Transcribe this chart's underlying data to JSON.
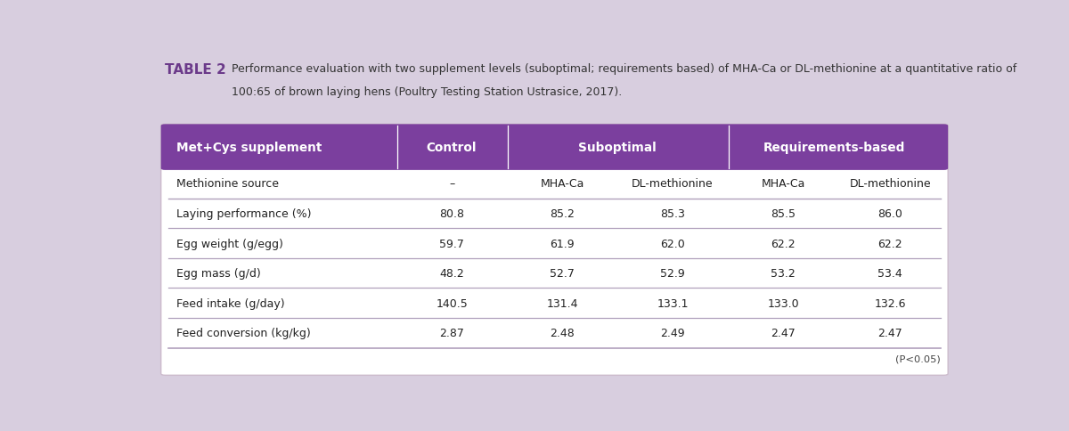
{
  "title_label": "TABLE 2",
  "title_text1": "Performance evaluation with two supplement levels (suboptimal; requirements based) of MHA-Ca or DL-methionine at a quantitative ratio of",
  "title_text2": "100:65 of brown laying hens (Poultry Testing Station Ustrasice, 2017).",
  "header_bg_color": "#7B3F9E",
  "outer_bg_color": "#D8CEDF",
  "row_line_color": "#B0A0BC",
  "header_row_col0": "Met+Cys supplement",
  "header_row_col1": "Control",
  "header_row_col23": "Suboptimal",
  "header_row_col45": "Requirements-based",
  "subheader_row": [
    "Methionine source",
    "–",
    "MHA-Ca",
    "DL-methionine",
    "MHA-Ca",
    "DL-methionine"
  ],
  "data_rows": [
    [
      "Laying performance (%)",
      "80.8",
      "85.2",
      "85.3",
      "85.5",
      "86.0"
    ],
    [
      "Egg weight (g/egg)",
      "59.7",
      "61.9",
      "62.0",
      "62.2",
      "62.2"
    ],
    [
      "Egg mass (g/d)",
      "48.2",
      "52.7",
      "52.9",
      "53.2",
      "53.4"
    ],
    [
      "Feed intake (g/day)",
      "140.5",
      "131.4",
      "133.1",
      "133.0",
      "132.6"
    ],
    [
      "Feed conversion (kg/kg)",
      "2.87",
      "2.48",
      "2.49",
      "2.47",
      "2.47"
    ]
  ],
  "footnote": "(P<0.05)"
}
